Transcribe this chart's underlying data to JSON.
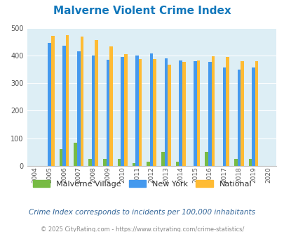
{
  "title": "Malverne Violent Crime Index",
  "years": [
    2004,
    2005,
    2006,
    2007,
    2008,
    2009,
    2010,
    2011,
    2012,
    2013,
    2014,
    2015,
    2016,
    2017,
    2018,
    2019,
    2020
  ],
  "malverne": [
    0,
    0,
    60,
    85,
    25,
    25,
    25,
    10,
    15,
    52,
    15,
    0,
    52,
    0,
    25,
    25,
    0
  ],
  "new_york": [
    0,
    445,
    435,
    415,
    400,
    385,
    395,
    400,
    407,
    390,
    383,
    380,
    377,
    357,
    350,
    357,
    0
  ],
  "national": [
    0,
    470,
    473,
    468,
    455,
    433,
    405,
    388,
    387,
    367,
    377,
    383,
    398,
    394,
    380,
    380,
    0
  ],
  "malverne_color": "#77bb44",
  "newyork_color": "#4499ee",
  "national_color": "#ffbb33",
  "bg_color": "#ddeef5",
  "title_color": "#1177bb",
  "footer_color": "#888888",
  "note_color": "#336699",
  "ylim": [
    0,
    500
  ],
  "yticks": [
    0,
    100,
    200,
    300,
    400,
    500
  ],
  "subtitle": "Crime Index corresponds to incidents per 100,000 inhabitants",
  "footer": "© 2025 CityRating.com - https://www.cityrating.com/crime-statistics/"
}
